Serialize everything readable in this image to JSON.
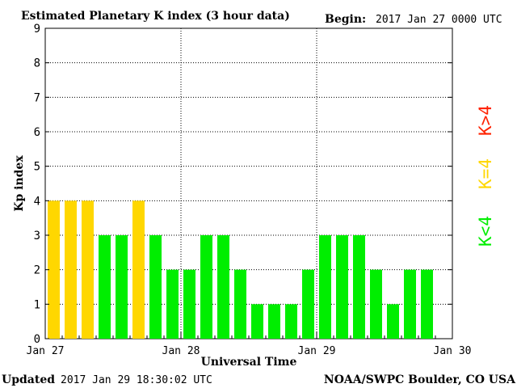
{
  "header": {
    "title": "Estimated Planetary K index (3 hour data)",
    "begin_label": "Begin:",
    "begin_value": "2017 Jan 27 0000 UTC"
  },
  "footer": {
    "updated_label": "Updated",
    "updated_value": "2017 Jan 29 18:30:02 UTC",
    "source": "NOAA/SWPC Boulder, CO USA"
  },
  "legend": {
    "gt4": "K>4",
    "eq4": "K=4",
    "lt4": "K<4"
  },
  "colors": {
    "lt4": "#00ee00",
    "eq4": "#ffd700",
    "gt4": "#ff2200",
    "background": "#ffffff",
    "axes": "#000000",
    "grid": "#000000"
  },
  "chart_data": {
    "type": "bar",
    "title": "Estimated Planetary K index (3 hour data)",
    "xlabel": "Universal Time",
    "ylabel": "Kp index",
    "ylim": [
      0,
      9
    ],
    "x_range_hours": [
      0,
      72
    ],
    "bin_hours": 3,
    "x_ticks": [
      "Jan 27",
      "Jan 28",
      "Jan 29",
      "Jan 30"
    ],
    "y_ticks": [
      "0",
      "1",
      "2",
      "3",
      "4",
      "5",
      "6",
      "7",
      "8",
      "9"
    ],
    "grid": "dotted, at each Kp level and each day boundary",
    "values": [
      4,
      4,
      4,
      3,
      3,
      4,
      3,
      2,
      2,
      3,
      3,
      2,
      1,
      1,
      1,
      2,
      3,
      3,
      3,
      2,
      1,
      2,
      2
    ]
  }
}
